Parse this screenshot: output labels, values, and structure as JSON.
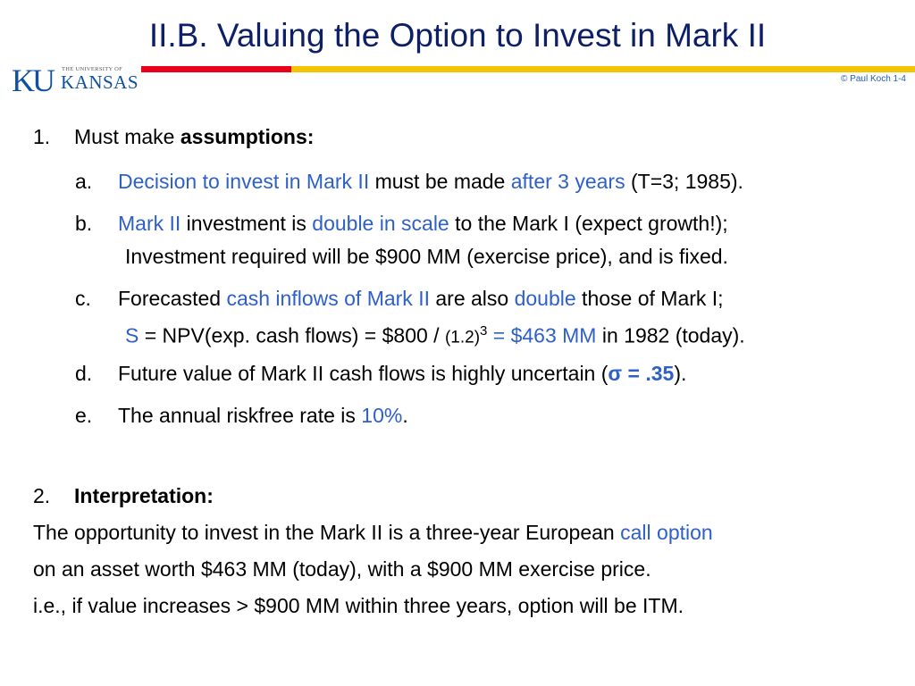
{
  "slide": {
    "title": "II.B.  Valuing the Option to Invest in Mark II",
    "copyright": "© Paul Koch 1-4"
  },
  "logo": {
    "ku": "KU",
    "small_text": "THE UNIVERSITY OF",
    "name": "KANSAS"
  },
  "section1": {
    "number": "1.",
    "text": "Must make ",
    "bold": "assumptions:",
    "items": {
      "a": {
        "label": "a.",
        "p1": "Decision to invest in Mark II",
        "p2": " must be made ",
        "p3": "after 3 years",
        "p4": " (T=3; 1985)."
      },
      "b": {
        "label": "b.",
        "p1": "Mark II",
        "p2": "  investment is ",
        "p3": "double in scale",
        "p4": " to the Mark I  (expect growth!);",
        "line2": "Investment required will be $900 MM  (exercise price),  and is fixed."
      },
      "c": {
        "label": "c.",
        "p1": "Forecasted ",
        "p2": "cash inflows of  Mark II",
        "p3": "  are also ",
        "p4": "double",
        "p5": " those of  Mark I;",
        "l2_s": "S",
        "l2_p1": " = NPV(exp. cash flows) = $800 / ",
        "l2_small": "(1.2)",
        "l2_sup": "3",
        "l2_p2": " = $463 MM",
        "l2_p3": " in 1982 (today)."
      },
      "d": {
        "label": "d.",
        "p1": "Future value of  Mark II  cash flows  is highly uncertain  (",
        "sigma": "σ = .35",
        "p2": ")."
      },
      "e": {
        "label": "e.",
        "p1": "The annual riskfree rate is ",
        "p2": "10%",
        "p3": "."
      }
    }
  },
  "section2": {
    "number": "2.",
    "heading": "Interpretation:",
    "line1_p1": "The opportunity to invest in the  Mark II  is a three-year European ",
    "line1_p2": "call option",
    "line2": "on an asset worth  $463 MM  (today),  with a  $900 MM exercise price.",
    "line3": "i.e.,  if  value  increases >  $900 MM  within three years, option will be ITM."
  },
  "colors": {
    "title": "#0d1f66",
    "accent_blue": "#2e60c8",
    "bar_red": "#e8001c",
    "bar_yellow": "#f5c400"
  }
}
